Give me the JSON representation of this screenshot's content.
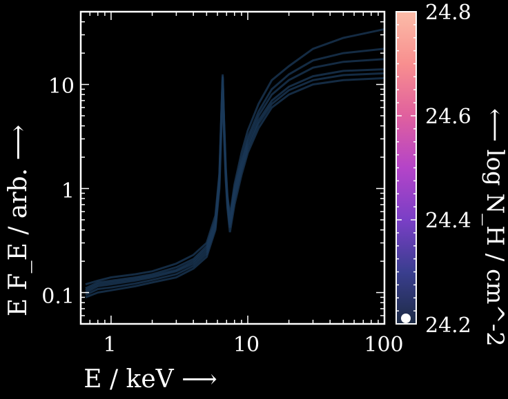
{
  "chart_data": {
    "type": "line",
    "xlabel": "E / keV ⟶",
    "ylabel": "E F_E / arb. ⟶",
    "x_scale": "log",
    "y_scale": "log",
    "xlim": [
      0.6,
      100
    ],
    "ylim": [
      0.05,
      50
    ],
    "x_ticks": [
      "1",
      "10",
      "100"
    ],
    "y_ticks": [
      "0.1",
      "1",
      "10"
    ],
    "grid": false,
    "line_color": "#1b3a5a",
    "background": "#000000",
    "series": [
      {
        "x": [
          0.65,
          0.8,
          1,
          1.5,
          2,
          3,
          4,
          5,
          5.8,
          6.2,
          6.4,
          6.55,
          6.7,
          6.9,
          7.1,
          7.4,
          8,
          9,
          10,
          12,
          15,
          20,
          30,
          50,
          100
        ],
        "y": [
          0.1,
          0.115,
          0.12,
          0.13,
          0.14,
          0.16,
          0.19,
          0.25,
          0.45,
          1.2,
          4.5,
          11.5,
          4.2,
          1.4,
          0.75,
          0.45,
          0.85,
          1.6,
          2.6,
          4.5,
          7,
          9.5,
          12,
          13.5,
          14
        ]
      },
      {
        "x": [
          0.65,
          0.8,
          1,
          1.5,
          2,
          3,
          4,
          5,
          5.8,
          6.2,
          6.4,
          6.55,
          6.7,
          6.9,
          7.1,
          7.4,
          8,
          9,
          10,
          12,
          15,
          20,
          30,
          50,
          100
        ],
        "y": [
          0.09,
          0.1,
          0.105,
          0.115,
          0.125,
          0.14,
          0.17,
          0.22,
          0.4,
          1.0,
          3.5,
          9.0,
          3.4,
          1.2,
          0.65,
          0.38,
          0.7,
          1.35,
          2.2,
          3.8,
          6,
          8,
          10,
          11,
          11.5
        ]
      },
      {
        "x": [
          0.65,
          0.8,
          1,
          1.5,
          2,
          3,
          4,
          5,
          5.8,
          6.2,
          6.4,
          6.55,
          6.7,
          6.9,
          7.1,
          7.4,
          8,
          9,
          10,
          12,
          15,
          20,
          30,
          50,
          100
        ],
        "y": [
          0.11,
          0.125,
          0.13,
          0.14,
          0.15,
          0.175,
          0.21,
          0.28,
          0.5,
          1.3,
          4.8,
          12.0,
          4.6,
          1.5,
          0.8,
          0.5,
          1.0,
          1.9,
          3.1,
          5.5,
          9,
          12.5,
          17,
          20,
          22
        ]
      },
      {
        "x": [
          0.65,
          0.8,
          1,
          1.5,
          2,
          3,
          4,
          5,
          5.8,
          6.2,
          6.4,
          6.55,
          6.7,
          6.9,
          7.1,
          7.4,
          8,
          9,
          10,
          12,
          15,
          20,
          30,
          50,
          100
        ],
        "y": [
          0.12,
          0.13,
          0.14,
          0.15,
          0.16,
          0.19,
          0.23,
          0.3,
          0.55,
          1.4,
          5.0,
          12.5,
          4.8,
          1.6,
          0.85,
          0.55,
          1.1,
          2.2,
          3.6,
          6.5,
          11,
          15,
          22,
          28,
          34
        ]
      },
      {
        "x": [
          0.65,
          0.8,
          1,
          1.5,
          2,
          3,
          4,
          5,
          5.8,
          6.2,
          6.4,
          6.55,
          6.7,
          6.9,
          7.1,
          7.4,
          8,
          9,
          10,
          12,
          15,
          20,
          30,
          50,
          100
        ],
        "y": [
          0.095,
          0.108,
          0.112,
          0.122,
          0.132,
          0.15,
          0.18,
          0.235,
          0.42,
          1.1,
          4.0,
          10.0,
          3.8,
          1.3,
          0.7,
          0.42,
          0.78,
          1.5,
          2.4,
          4.2,
          6.5,
          8.8,
          11,
          12.3,
          12.8
        ]
      },
      {
        "x": [
          0.65,
          0.8,
          1,
          1.5,
          2,
          3,
          4,
          5,
          5.8,
          6.2,
          6.4,
          6.55,
          6.7,
          6.9,
          7.1,
          7.4,
          8,
          9,
          10,
          12,
          15,
          20,
          30,
          50,
          100
        ],
        "y": [
          0.105,
          0.12,
          0.125,
          0.135,
          0.145,
          0.165,
          0.2,
          0.265,
          0.48,
          1.25,
          4.6,
          11.8,
          4.4,
          1.45,
          0.78,
          0.48,
          0.92,
          1.75,
          2.85,
          5.0,
          8,
          11,
          14.5,
          16.5,
          17.5
        ]
      }
    ]
  },
  "colorbar": {
    "label": "⟵ log N_H / cm^-2",
    "ticks": [
      "24.2",
      "24.4",
      "24.6",
      "24.8"
    ],
    "range": [
      24.2,
      24.8
    ],
    "colors": [
      "#1d2b45",
      "#3a3e8f",
      "#7a3fc6",
      "#b444c8",
      "#e0609e",
      "#f88f8f",
      "#fbbca8"
    ],
    "marker_value": 24.2,
    "marker_color": "#ffffff"
  }
}
